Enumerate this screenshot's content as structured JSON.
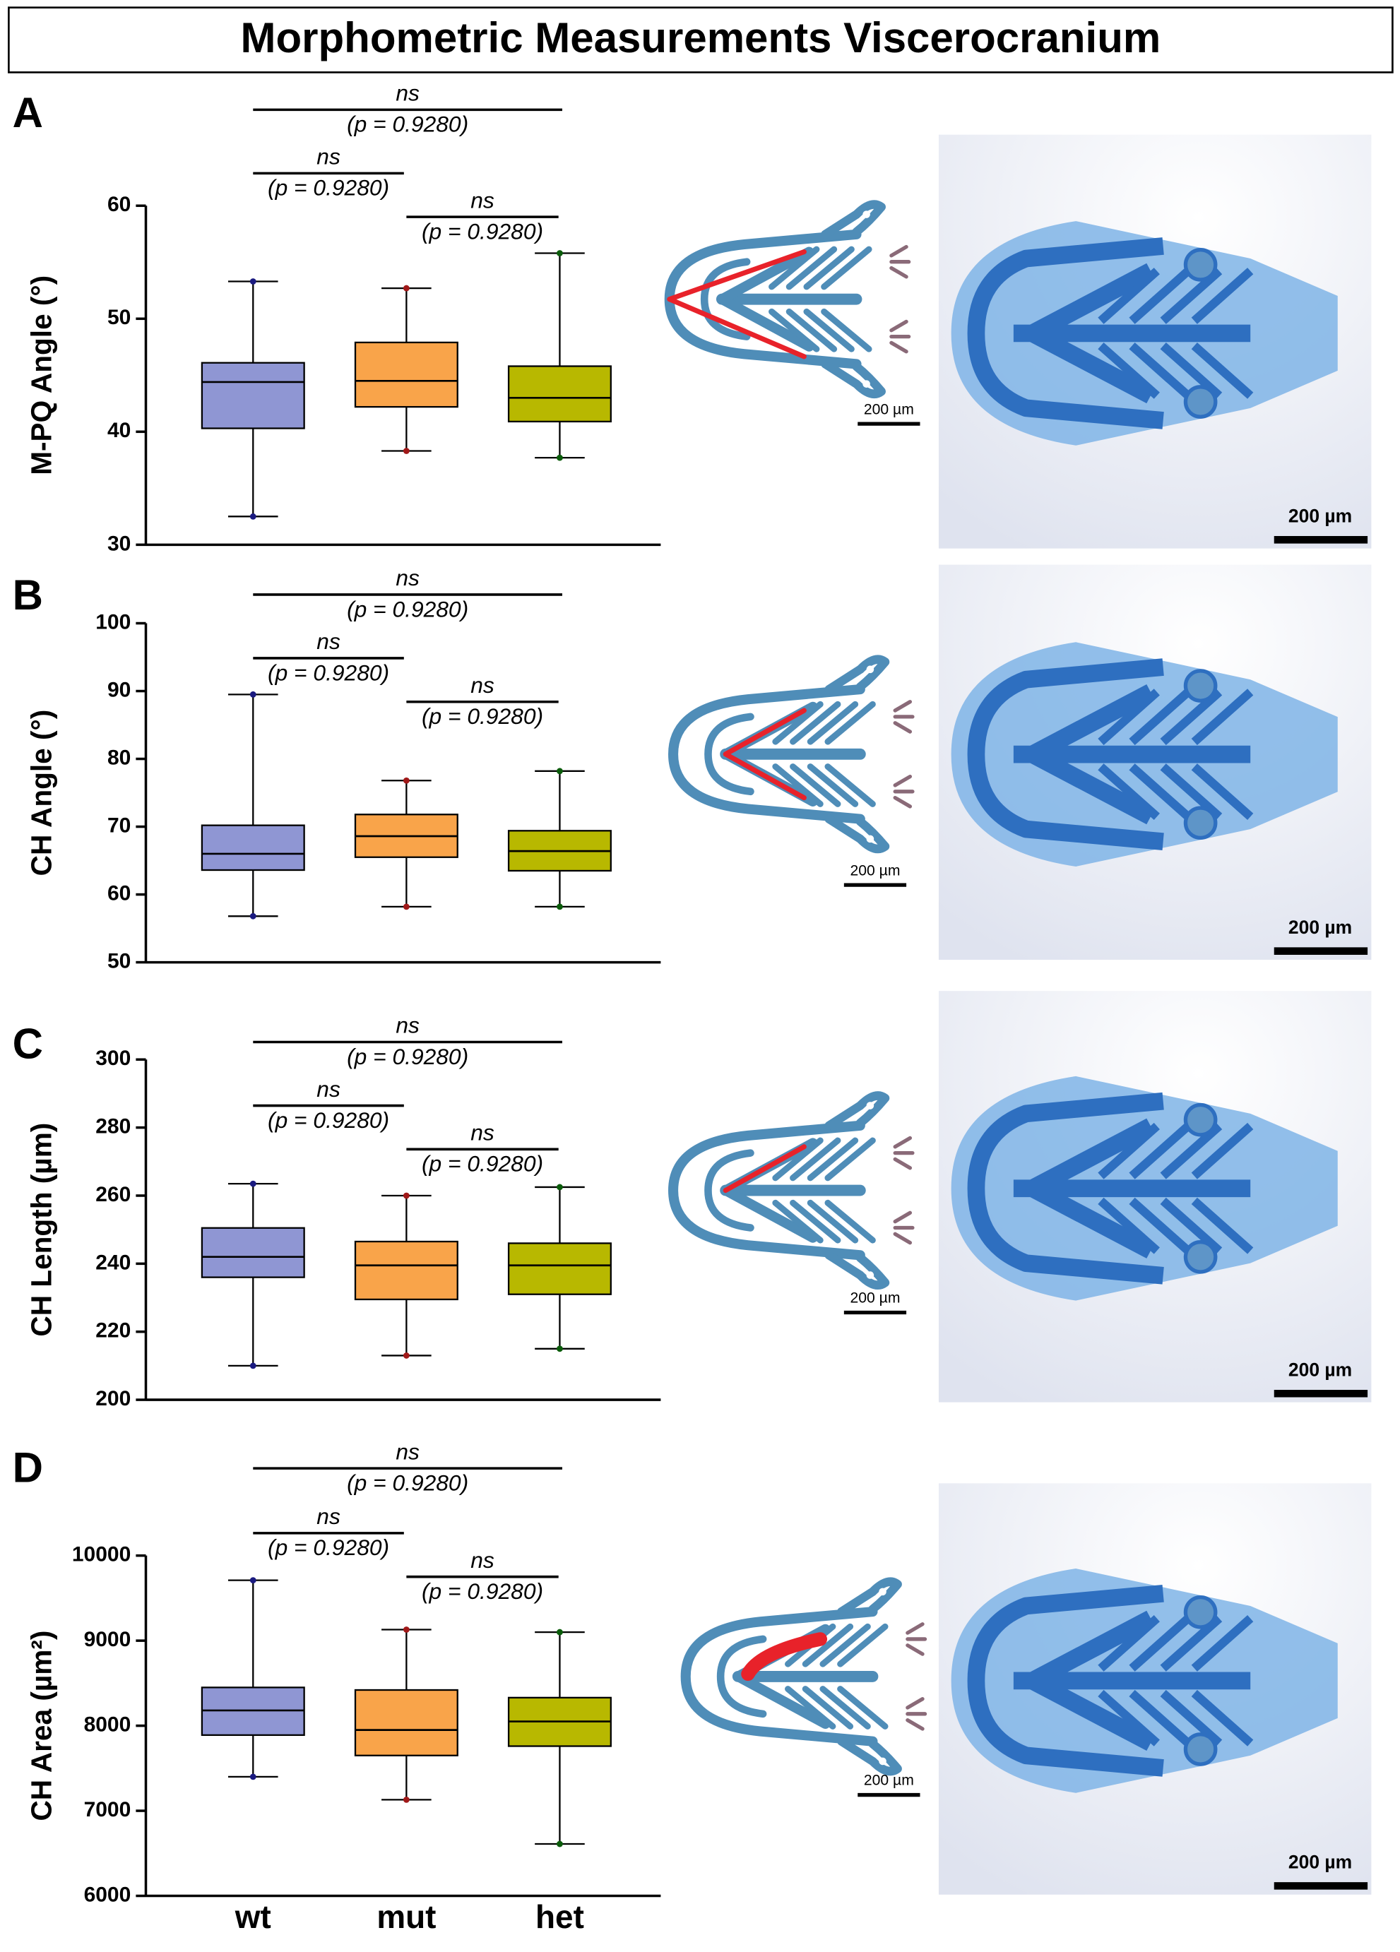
{
  "title": "Morphometric Measurements Viscerocranium",
  "chart_data": [
    {
      "type": "box",
      "panel_label": "A",
      "y_label": "M-PQ Angle (°)",
      "ylim": [
        30,
        60
      ],
      "yticks": [
        30,
        40,
        50,
        60
      ],
      "series": [
        {
          "color": "#8f96d3",
          "min": 32.5,
          "q1": 40.3,
          "median": 44.4,
          "q3": 46.1,
          "max": 53.3
        },
        {
          "color": "#f9a44a",
          "min": 38.3,
          "q1": 42.2,
          "median": 44.5,
          "q3": 47.9,
          "max": 52.7
        },
        {
          "color": "#b8b800",
          "min": 37.7,
          "q1": 40.9,
          "median": 43.0,
          "q3": 45.8,
          "max": 55.8
        }
      ],
      "significance": [
        {
          "label": "ns",
          "p": "(p = 0.9280)"
        },
        {
          "label": "ns",
          "p": "(p = 0.9280)"
        },
        {
          "label": "ns",
          "p": "(p = 0.9280)"
        }
      ],
      "scale_bars": [
        "200 µm",
        "200 µm"
      ]
    },
    {
      "type": "box",
      "panel_label": "B",
      "y_label": "CH Angle (°)",
      "ylim": [
        50,
        100
      ],
      "yticks": [
        50,
        60,
        70,
        80,
        90,
        100
      ],
      "series": [
        {
          "color": "#8f96d3",
          "min": 56.8,
          "q1": 63.6,
          "median": 66.0,
          "q3": 70.2,
          "max": 89.5
        },
        {
          "color": "#f9a44a",
          "min": 58.2,
          "q1": 65.5,
          "median": 68.6,
          "q3": 71.8,
          "max": 76.8
        },
        {
          "color": "#b8b800",
          "min": 58.2,
          "q1": 63.5,
          "median": 66.4,
          "q3": 69.4,
          "max": 78.2
        }
      ],
      "significance": [
        {
          "label": "ns",
          "p": "(p = 0.9280)"
        },
        {
          "label": "ns",
          "p": "(p = 0.9280)"
        },
        {
          "label": "ns",
          "p": "(p = 0.9280)"
        }
      ],
      "scale_bars": [
        "200 µm",
        "200 µm"
      ]
    },
    {
      "type": "box",
      "panel_label": "C",
      "y_label": "CH Length (µm)",
      "ylim": [
        200,
        300
      ],
      "yticks": [
        200,
        220,
        240,
        260,
        280,
        300
      ],
      "series": [
        {
          "color": "#8f96d3",
          "min": 210,
          "q1": 236,
          "median": 242,
          "q3": 250.5,
          "max": 263.5
        },
        {
          "color": "#f9a44a",
          "min": 213,
          "q1": 229.5,
          "median": 239.5,
          "q3": 246.5,
          "max": 260
        },
        {
          "color": "#b8b800",
          "min": 215,
          "q1": 231,
          "median": 239.5,
          "q3": 246,
          "max": 262.5
        }
      ],
      "significance": [
        {
          "label": "ns",
          "p": "(p = 0.9280)"
        },
        {
          "label": "ns",
          "p": "(p = 0.9280)"
        },
        {
          "label": "ns",
          "p": "(p = 0.9280)"
        }
      ],
      "scale_bars": [
        "200 µm",
        "200 µm"
      ]
    },
    {
      "type": "box",
      "panel_label": "D",
      "y_label": "CH Area (µm²)",
      "categories": [
        "wt",
        "mut",
        "het"
      ],
      "ylim": [
        6000,
        10000
      ],
      "yticks": [
        6000,
        7000,
        8000,
        9000,
        10000
      ],
      "series": [
        {
          "color": "#8f96d3",
          "min": 7400,
          "q1": 7890,
          "median": 8180,
          "q3": 8450,
          "max": 9710
        },
        {
          "color": "#f9a44a",
          "min": 7130,
          "q1": 7650,
          "median": 7950,
          "q3": 8420,
          "max": 9130
        },
        {
          "color": "#b8b800",
          "min": 6610,
          "q1": 7760,
          "median": 8050,
          "q3": 8330,
          "max": 9100
        }
      ],
      "significance": [
        {
          "label": "ns",
          "p": "(p = 0.9280)"
        },
        {
          "label": "ns",
          "p": "(p = 0.9280)"
        },
        {
          "label": "ns",
          "p": "(p = 0.9280)"
        }
      ],
      "scale_bars": [
        "200 µm",
        "200 µm"
      ]
    }
  ]
}
